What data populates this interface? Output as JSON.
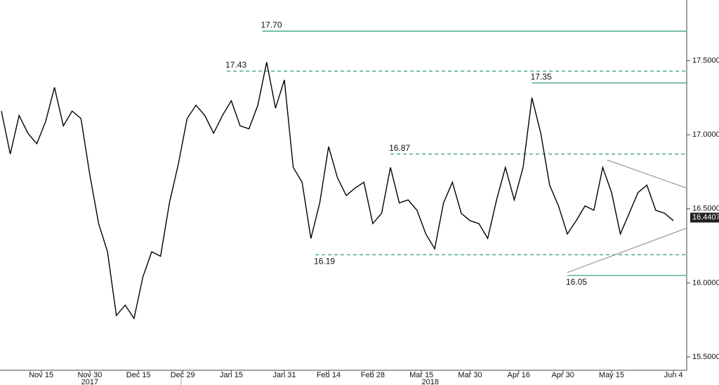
{
  "chart_data": {
    "type": "line",
    "x": [
      "2017-11-02",
      "2017-11-06",
      "2017-11-08",
      "2017-11-10",
      "2017-11-14",
      "2017-11-16",
      "2017-11-20",
      "2017-11-22",
      "2017-11-24",
      "2017-11-28",
      "2017-11-30",
      "2017-12-04",
      "2017-12-06",
      "2017-12-08",
      "2017-12-12",
      "2017-12-14",
      "2017-12-18",
      "2017-12-20",
      "2017-12-22",
      "2017-12-26",
      "2017-12-28",
      "2018-01-01",
      "2018-01-03",
      "2018-01-05",
      "2018-01-09",
      "2018-01-11",
      "2018-01-15",
      "2018-01-17",
      "2018-01-19",
      "2018-01-23",
      "2018-01-25",
      "2018-01-29",
      "2018-01-31",
      "2018-02-02",
      "2018-02-06",
      "2018-02-08",
      "2018-02-12",
      "2018-02-14",
      "2018-02-16",
      "2018-02-20",
      "2018-02-22",
      "2018-02-26",
      "2018-02-28",
      "2018-03-02",
      "2018-03-06",
      "2018-03-08",
      "2018-03-12",
      "2018-03-14",
      "2018-03-16",
      "2018-03-20",
      "2018-03-22",
      "2018-03-26",
      "2018-03-28",
      "2018-03-30",
      "2018-04-03",
      "2018-04-05",
      "2018-04-09",
      "2018-04-11",
      "2018-04-13",
      "2018-04-17",
      "2018-04-19",
      "2018-04-23",
      "2018-04-25",
      "2018-04-27",
      "2018-05-01",
      "2018-05-03",
      "2018-05-07",
      "2018-05-09",
      "2018-05-11",
      "2018-05-15",
      "2018-05-17",
      "2018-05-21",
      "2018-05-23",
      "2018-05-25",
      "2018-05-29",
      "2018-05-31",
      "2018-06-04"
    ],
    "series": [
      {
        "color": "#000000",
        "values": [
          17.16,
          16.87,
          17.13,
          17.01,
          16.94,
          17.09,
          17.32,
          17.06,
          17.16,
          17.11,
          16.73,
          16.4,
          16.21,
          15.78,
          15.85,
          15.76,
          16.04,
          16.21,
          16.18,
          16.54,
          16.8,
          17.11,
          17.2,
          17.13,
          17.01,
          17.13,
          17.23,
          17.06,
          17.04,
          17.2,
          17.49,
          17.18,
          17.37,
          16.78,
          16.68,
          16.3,
          16.54,
          16.92,
          16.71,
          16.59,
          16.64,
          16.68,
          16.4,
          16.47,
          16.78,
          16.54,
          16.56,
          16.49,
          16.33,
          16.23,
          16.54,
          16.68,
          16.47,
          16.42,
          16.4,
          16.3,
          16.56,
          16.78,
          16.56,
          16.78,
          17.25,
          17.01,
          16.66,
          16.52,
          16.33,
          16.42,
          16.52,
          16.49,
          16.78,
          16.61,
          16.33,
          16.47,
          16.61,
          16.66,
          16.49,
          16.47,
          16.42
        ]
      }
    ],
    "last_value": 16.4407,
    "xlim": [
      "2017-11-02",
      "2018-06-07"
    ],
    "ylim": [
      15.41,
      17.91
    ],
    "yticks": [
      {
        "value": 15.5,
        "label": "15.5000"
      },
      {
        "value": 16,
        "label": "16.0000"
      },
      {
        "value": 16.5,
        "label": "16.5000"
      },
      {
        "value": 17,
        "label": "17.0000"
      },
      {
        "value": 17.5,
        "label": "17.5000"
      }
    ],
    "xticks": [
      {
        "value": "2017-11-15",
        "label": "Nov 15"
      },
      {
        "value": "2017-11-30",
        "label": "Nov 30"
      },
      {
        "value": "2017-12-15",
        "label": "Dec 15"
      },
      {
        "value": "2017-12-29",
        "label": "Dec 29"
      },
      {
        "value": "2018-01-15",
        "label": "Jan 15"
      },
      {
        "value": "2018-01-31",
        "label": "Jan 31"
      },
      {
        "value": "2018-02-14",
        "label": "Feb 14"
      },
      {
        "value": "2018-02-28",
        "label": "Feb 28"
      },
      {
        "value": "2018-03-15",
        "label": "Mar 15"
      },
      {
        "value": "2018-03-30",
        "label": "Mar 30"
      },
      {
        "value": "2018-04-16",
        "label": "Apr 16"
      },
      {
        "value": "2018-04-30",
        "label": "Apr 30"
      },
      {
        "value": "2018-05-15",
        "label": "May 15"
      },
      {
        "value": "2018-06-04",
        "label": "Jun 4"
      }
    ],
    "years": [
      {
        "value": "2017-11-30",
        "label": "2017"
      },
      {
        "value": "2018-03-19",
        "label": "2018"
      }
    ],
    "levels": [
      {
        "value": 17.7,
        "label": "17.70",
        "start": "2018-01-24",
        "style": "solid",
        "label_side": "above"
      },
      {
        "value": 17.43,
        "label": "17.43",
        "start": "2018-01-12",
        "style": "dashed",
        "label_side": "above"
      },
      {
        "value": 17.35,
        "label": "17.35",
        "start": "2018-04-19",
        "style": "solid",
        "label_side": "above"
      },
      {
        "value": 16.87,
        "label": "16.87",
        "start": "2018-03-06",
        "style": "dashed",
        "label_side": "above"
      },
      {
        "value": 16.19,
        "label": "16.19",
        "start": "2018-02-09",
        "style": "dashed",
        "label_side": "below"
      },
      {
        "value": 16.05,
        "label": "16.05",
        "start": "2018-05-01",
        "style": "solid",
        "label_side": "below"
      }
    ],
    "level_color": "#2e9a7a",
    "trendlines": [
      {
        "x": [
          "2018-05-14",
          "2018-06-07"
        ],
        "values": [
          16.83,
          16.64
        ]
      },
      {
        "x": [
          "2018-05-01",
          "2018-06-07"
        ],
        "values": [
          16.07,
          16.37
        ]
      }
    ],
    "trendline_color": "#888888"
  }
}
